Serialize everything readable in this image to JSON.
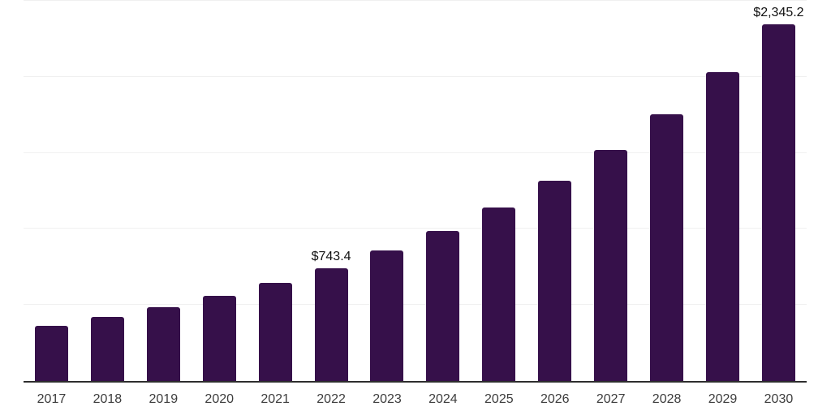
{
  "chart_data": {
    "type": "bar",
    "title": "",
    "xlabel": "",
    "ylabel": "",
    "categories": [
      "2017",
      "2018",
      "2019",
      "2020",
      "2021",
      "2022",
      "2023",
      "2024",
      "2025",
      "2026",
      "2027",
      "2028",
      "2029",
      "2030"
    ],
    "values": [
      365,
      420,
      483,
      560,
      645,
      743.4,
      858,
      985,
      1140,
      1318,
      1520,
      1755,
      2030,
      2345.2
    ],
    "data_labels": [
      "",
      "",
      "",
      "",
      "",
      "$743.4",
      "",
      "",
      "",
      "",
      "",
      "",
      "",
      "$2,345.2"
    ],
    "ylim": [
      0,
      2500
    ],
    "grid_step": 500,
    "grid": true,
    "legend": "none",
    "colors": {
      "bar": "#36104a",
      "axis_line": "#2e2e2e",
      "gridline": "#f0f0f0",
      "tick_label": "#3d3d3d",
      "data_label": "#111111"
    }
  }
}
